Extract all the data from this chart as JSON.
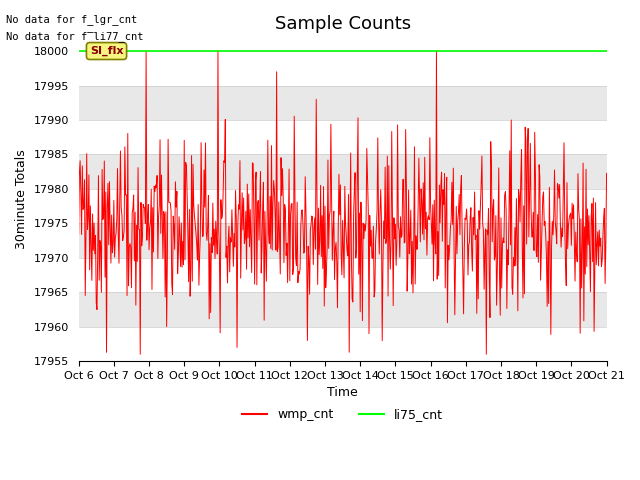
{
  "title": "Sample Counts",
  "xlabel": "Time",
  "ylabel": "30minute Totals",
  "ylim": [
    17955,
    18002
  ],
  "xlim": [
    0,
    360
  ],
  "x_tick_labels": [
    "Oct 6",
    "Oct 7",
    "Oct 8",
    "Oct 9",
    "Oct 10",
    "Oct 11",
    "Oct 12",
    "Oct 13",
    "Oct 14",
    "Oct 15",
    "Oct 16",
    "Oct 17",
    "Oct 18",
    "Oct 19",
    "Oct 20",
    "Oct 21"
  ],
  "x_tick_positions": [
    0,
    24,
    48,
    72,
    96,
    120,
    144,
    168,
    192,
    216,
    240,
    264,
    288,
    312,
    336,
    360
  ],
  "y_ticks": [
    17955,
    17960,
    17965,
    17970,
    17975,
    17980,
    17985,
    17990,
    17995,
    18000
  ],
  "green_line_value": 18000,
  "annotation_text1": "No data for f_lgr_cnt",
  "annotation_text2": "No data for f̲li77_cnt",
  "si_flx_label": "SI_flx",
  "legend_labels": [
    "wmp_cnt",
    "li75_cnt"
  ],
  "line_colors": [
    "red",
    "green"
  ],
  "bg_white": "#ffffff",
  "bg_gray": "#e8e8e8",
  "title_fontsize": 13,
  "axis_fontsize": 9,
  "tick_fontsize": 8
}
